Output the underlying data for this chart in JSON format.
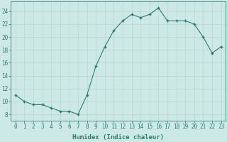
{
  "x": [
    0,
    1,
    2,
    3,
    4,
    5,
    6,
    7,
    8,
    9,
    10,
    11,
    12,
    13,
    14,
    15,
    16,
    17,
    18,
    19,
    20,
    21,
    22,
    23
  ],
  "y": [
    11,
    10,
    9.5,
    9.5,
    9,
    8.5,
    8.5,
    8,
    11,
    15.5,
    18.5,
    21,
    22.5,
    23.5,
    23,
    23.5,
    24.5,
    22.5,
    22.5,
    22.5,
    22,
    20,
    17.5,
    18.5
  ],
  "line_color": "#2d7d6e",
  "marker_color": "#2d7d6e",
  "bg_color": "#cce9e5",
  "grid_color": "#b8d8d4",
  "xlabel": "Humidex (Indice chaleur)",
  "xlim": [
    -0.5,
    23.5
  ],
  "ylim": [
    7,
    25.5
  ],
  "yticks": [
    8,
    10,
    12,
    14,
    16,
    18,
    20,
    22,
    24
  ],
  "xticks": [
    0,
    1,
    2,
    3,
    4,
    5,
    6,
    7,
    8,
    9,
    10,
    11,
    12,
    13,
    14,
    15,
    16,
    17,
    18,
    19,
    20,
    21,
    22,
    23
  ],
  "tick_fontsize": 5.5,
  "label_fontsize": 6.5
}
